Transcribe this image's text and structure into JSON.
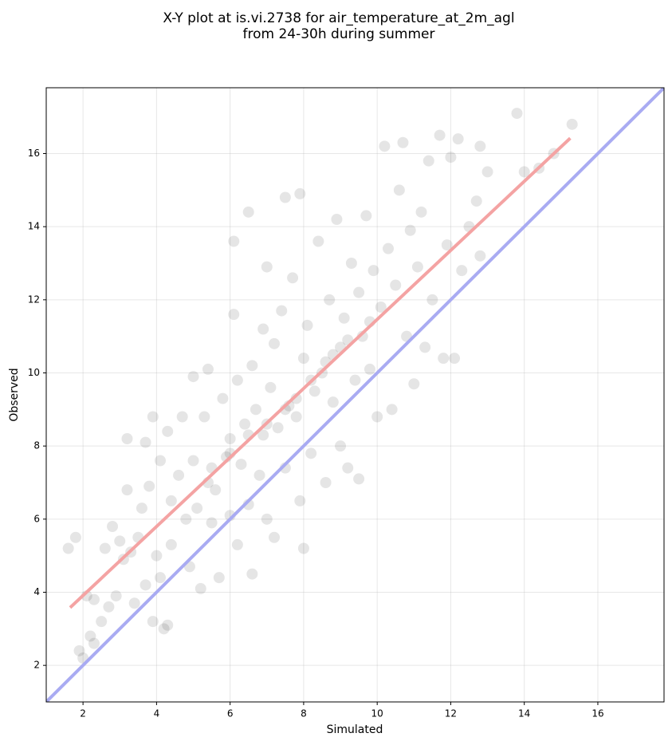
{
  "chart_data": {
    "type": "scatter",
    "title": [
      "X-Y plot at is.vi.2738 for air_temperature_at_2m_agl",
      "from 24-30h during summer"
    ],
    "x_label": "Simulated",
    "y_label": "Observed",
    "xlim": [
      1,
      17.8
    ],
    "ylim": [
      1,
      17.8
    ],
    "xticks": [
      2,
      4,
      6,
      8,
      10,
      12,
      14,
      16
    ],
    "yticks": [
      2,
      4,
      6,
      8,
      10,
      12,
      14,
      16
    ],
    "grid": true,
    "series": [
      {
        "type": "scatter",
        "color": "#000000",
        "x": [
          1.6,
          1.8,
          1.9,
          2.0,
          2.2,
          2.3,
          2.1,
          2.3,
          2.5,
          2.6,
          2.7,
          2.8,
          2.9,
          3.0,
          3.1,
          3.2,
          3.2,
          3.3,
          3.4,
          3.5,
          3.6,
          3.7,
          3.7,
          3.8,
          3.9,
          3.9,
          4.0,
          4.1,
          4.1,
          4.2,
          4.3,
          4.3,
          4.4,
          4.4,
          4.6,
          4.7,
          4.8,
          4.9,
          5.0,
          5.0,
          5.1,
          5.2,
          5.3,
          5.4,
          5.4,
          5.5,
          5.6,
          5.7,
          5.8,
          5.9,
          6.0,
          6.0,
          6.1,
          6.1,
          6.2,
          6.2,
          6.3,
          6.4,
          6.5,
          6.5,
          6.6,
          6.6,
          6.7,
          6.8,
          6.9,
          6.9,
          7.0,
          7.0,
          7.1,
          7.2,
          7.2,
          7.3,
          7.4,
          7.5,
          7.5,
          7.6,
          7.7,
          7.8,
          7.9,
          7.9,
          8.0,
          8.0,
          8.1,
          8.2,
          8.3,
          8.4,
          8.5,
          8.6,
          8.7,
          8.8,
          8.9,
          9.0,
          9.0,
          9.1,
          9.2,
          9.3,
          9.4,
          9.5,
          9.5,
          9.6,
          9.7,
          9.8,
          9.9,
          10.0,
          10.1,
          10.2,
          10.3,
          10.4,
          10.5,
          10.6,
          10.7,
          10.8,
          10.9,
          11.0,
          11.1,
          11.2,
          11.3,
          11.4,
          11.5,
          11.7,
          11.8,
          11.9,
          12.0,
          12.1,
          12.2,
          12.3,
          12.5,
          12.7,
          12.8,
          12.8,
          13.0,
          13.8,
          14.0,
          14.4,
          14.8,
          15.3,
          7.5,
          7.8,
          8.2,
          8.6,
          7.0,
          6.5,
          6.0,
          5.5,
          9.2,
          9.8,
          8.8
        ],
        "values": [
          5.2,
          5.5,
          2.4,
          2.2,
          2.8,
          2.6,
          3.9,
          3.8,
          3.2,
          5.2,
          3.6,
          5.8,
          3.9,
          5.4,
          4.9,
          8.2,
          6.8,
          5.1,
          3.7,
          5.5,
          6.3,
          8.1,
          4.2,
          6.9,
          3.2,
          8.8,
          5.0,
          4.4,
          7.6,
          3.0,
          8.4,
          3.1,
          6.5,
          5.3,
          7.2,
          8.8,
          6.0,
          4.7,
          9.9,
          7.6,
          6.3,
          4.1,
          8.8,
          10.1,
          7.0,
          5.9,
          6.8,
          4.4,
          9.3,
          7.7,
          8.2,
          6.1,
          11.6,
          13.6,
          9.8,
          5.3,
          7.5,
          8.6,
          14.4,
          6.4,
          10.2,
          4.5,
          9.0,
          7.2,
          11.2,
          8.3,
          12.9,
          6.0,
          9.6,
          10.8,
          5.5,
          8.5,
          11.7,
          14.8,
          7.4,
          9.1,
          12.6,
          8.8,
          14.9,
          6.5,
          10.4,
          5.2,
          11.3,
          7.8,
          9.5,
          13.6,
          10.0,
          7.0,
          12.0,
          9.2,
          14.2,
          10.7,
          8.0,
          11.5,
          7.4,
          13.0,
          9.8,
          12.2,
          7.1,
          11.0,
          14.3,
          10.1,
          12.8,
          8.8,
          11.8,
          16.2,
          13.4,
          9.0,
          12.4,
          15.0,
          16.3,
          11.0,
          13.9,
          9.7,
          12.9,
          14.4,
          10.7,
          15.8,
          12.0,
          16.5,
          10.4,
          13.5,
          15.9,
          10.4,
          16.4,
          12.8,
          14.0,
          14.7,
          13.2,
          16.2,
          15.5,
          17.1,
          15.5,
          15.6,
          16.0,
          16.8,
          9.0,
          9.3,
          9.8,
          10.3,
          8.6,
          8.3,
          7.8,
          7.4,
          10.9,
          11.4,
          10.5
        ]
      },
      {
        "type": "line",
        "color": "#f4a3a3",
        "x": [
          1.65,
          15.25
        ],
        "values": [
          3.58,
          16.42
        ]
      },
      {
        "type": "line",
        "color": "#a9abf2",
        "x": [
          1,
          17.8
        ],
        "values": [
          1,
          17.8
        ]
      }
    ]
  }
}
